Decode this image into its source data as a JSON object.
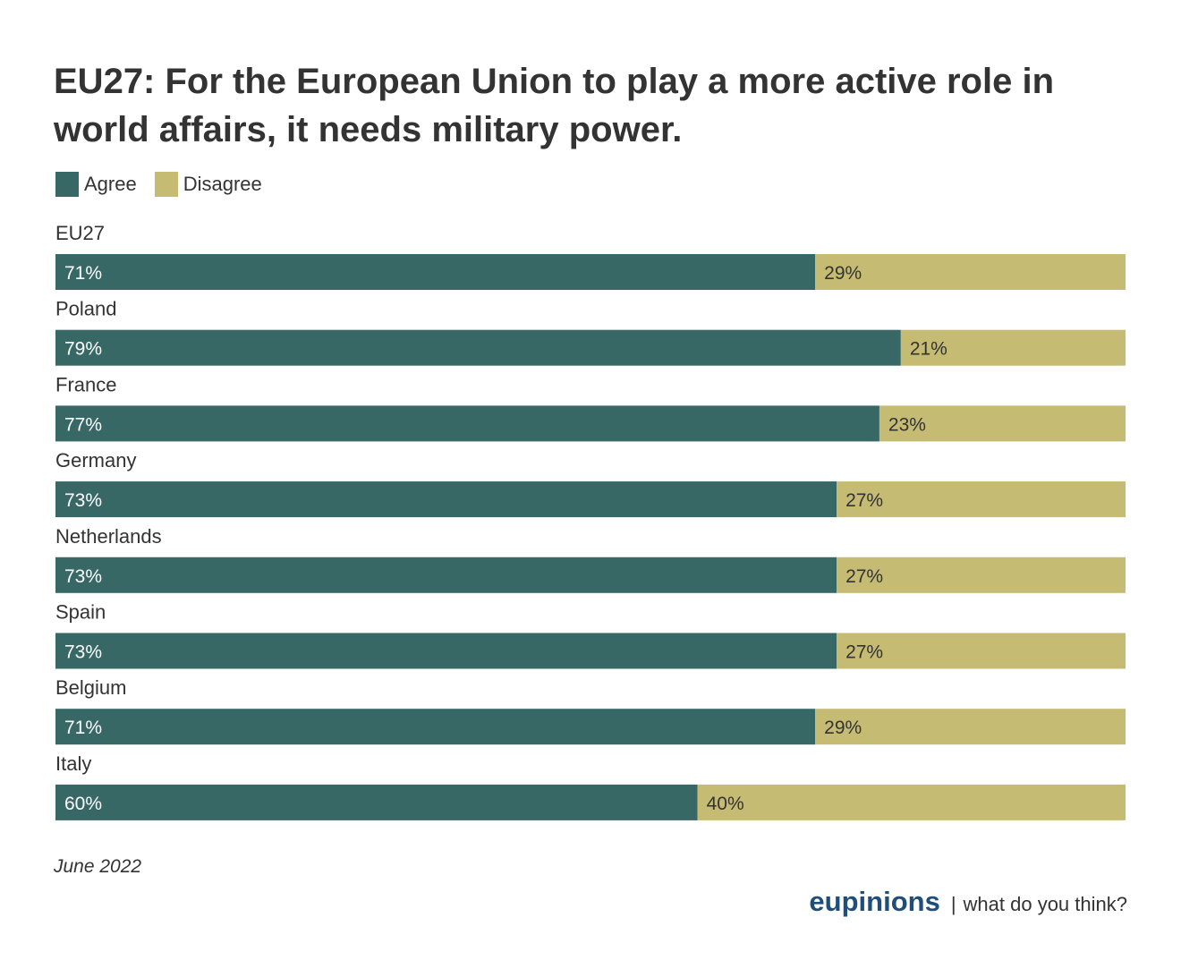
{
  "colors": {
    "agree": "#376866",
    "disagree": "#c6bb73",
    "agree_text": "#ffffff",
    "disagree_text": "#333333"
  },
  "legend": {
    "agree": "Agree",
    "disagree": "Disagree"
  },
  "footer": {
    "date": "June 2022",
    "brand": "eupinions",
    "separator": "|",
    "tagline": "what do you think?"
  },
  "chart_data": {
    "type": "bar",
    "orientation": "horizontal",
    "stacked": true,
    "normalized": true,
    "title": "EU27: For the European Union to play a more active role in world affairs, it needs military power.",
    "categories": [
      "EU27",
      "Poland",
      "France",
      "Germany",
      "Netherlands",
      "Spain",
      "Belgium",
      "Italy"
    ],
    "series": [
      {
        "name": "Agree",
        "values": [
          71,
          79,
          77,
          73,
          73,
          73,
          71,
          60
        ]
      },
      {
        "name": "Disagree",
        "values": [
          29,
          21,
          23,
          27,
          27,
          27,
          29,
          40
        ]
      }
    ],
    "value_labels": {
      "Agree": [
        "71%",
        "79%",
        "77%",
        "73%",
        "73%",
        "73%",
        "71%",
        "60%"
      ],
      "Disagree": [
        "29%",
        "21%",
        "23%",
        "27%",
        "27%",
        "27%",
        "29%",
        "40%"
      ]
    },
    "xlim": [
      0,
      100
    ],
    "legend_position": "top-left",
    "grid": false
  }
}
